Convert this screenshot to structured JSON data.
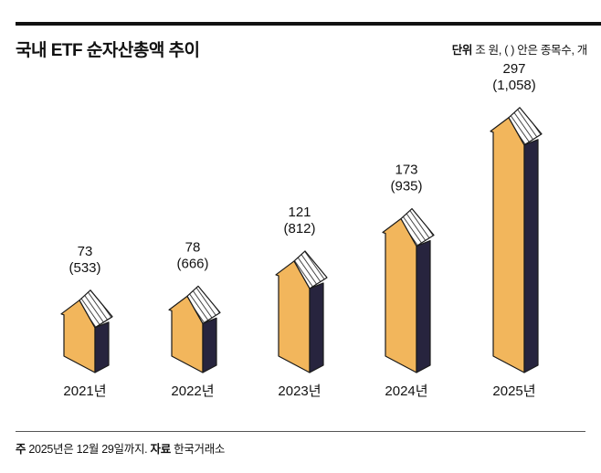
{
  "header": {
    "title": "국내 ETF 순자산총액 추이",
    "unit_label": "단위",
    "unit_text": "조 원, ( ) 안은 종목수, 개"
  },
  "footer": {
    "note_label": "주",
    "note_text": "2025년은 12월 29일까지.",
    "source_label": "자료",
    "source_text": "한국거래소"
  },
  "colors": {
    "front": "#f2b65c",
    "side": "#27243e",
    "outline": "#1a1a1a",
    "roof_hatch": "#1a1a1a"
  },
  "chart_data": {
    "type": "bar",
    "title": "국내 ETF 순자산총액 추이",
    "xlabel": "",
    "ylabel": "조 원",
    "categories": [
      "2021년",
      "2022년",
      "2023년",
      "2024년",
      "2025년"
    ],
    "series": [
      {
        "name": "순자산총액(조 원)",
        "values": [
          73,
          78,
          121,
          173,
          297
        ]
      },
      {
        "name": "종목수(개)",
        "values": [
          533,
          666,
          812,
          935,
          1058
        ]
      }
    ],
    "value_labels": [
      "73",
      "78",
      "121",
      "173",
      "297"
    ],
    "count_labels": [
      "(533)",
      "(666)",
      "(812)",
      "(935)",
      "(1,058)"
    ],
    "ylim": [
      0,
      300
    ],
    "grid": false,
    "legend": "none"
  }
}
